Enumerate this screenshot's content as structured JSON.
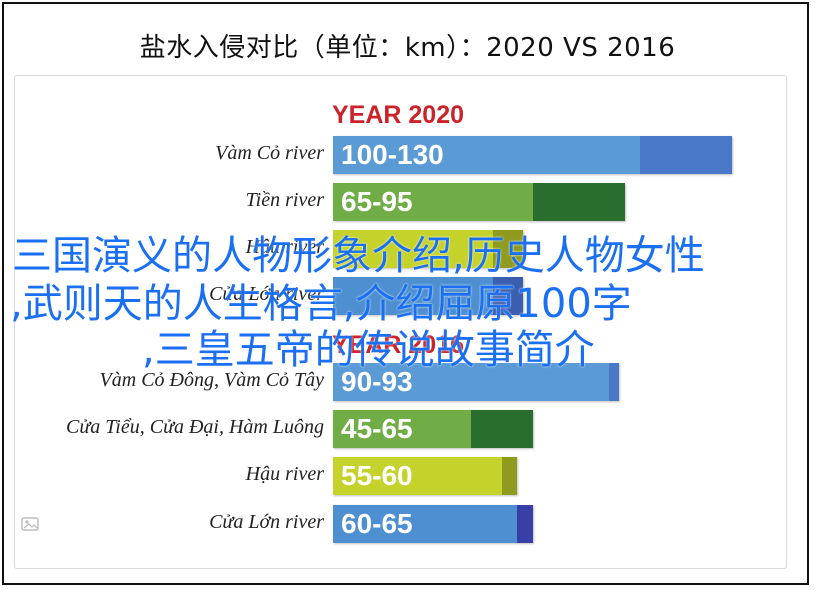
{
  "title": "盐水入侵对比（单位：km）：2020 VS 2016",
  "chart_data": {
    "type": "bar",
    "orientation": "horizontal",
    "groups": [
      {
        "title": "YEAR 2020",
        "rows": [
          {
            "label": "Vàm Cỏ river",
            "range_label": "100-130",
            "min": 100,
            "max": 130,
            "color": "#5b9bd5",
            "ext_color": "#4a78c8"
          },
          {
            "label": "Tiền river",
            "range_label": "65-95",
            "min": 65,
            "max": 95,
            "color": "#70ad47",
            "ext_color": "#2a6e2f"
          },
          {
            "label": "Hậu river",
            "range_label": "",
            "min": null,
            "max": null,
            "color": "#c5d22c",
            "ext_color": "#8f9b1f"
          },
          {
            "label": "Cửa Lớn river",
            "range_label": "",
            "min": null,
            "max": null,
            "color": "#4d8fd0",
            "ext_color": "#3a5fb0"
          }
        ]
      },
      {
        "title": "YEAR 2016",
        "rows": [
          {
            "label": "Vàm Cỏ Đông, Vàm Cỏ Tây",
            "range_label": "90-93",
            "min": 90,
            "max": 93,
            "color": "#5b9bd5",
            "ext_color": "#4a78c8"
          },
          {
            "label": "Cửa Tiểu, Cửa Đại, Hàm Luông",
            "range_label": "45-65",
            "min": 45,
            "max": 65,
            "color": "#70ad47",
            "ext_color": "#2a6e2f"
          },
          {
            "label": "Hậu river",
            "range_label": "55-60",
            "min": 55,
            "max": 60,
            "color": "#c5d22c",
            "ext_color": "#8f9b1f"
          },
          {
            "label": "Cửa Lớn river",
            "range_label": "60-65",
            "min": 60,
            "max": 65,
            "color": "#4d8fd0",
            "ext_color": "#3a3fa8"
          }
        ]
      }
    ]
  },
  "overlay_text": {
    "line1": "三国演义的人物形象介绍,历史人物女性",
    "line2": ",武则天的人生格言,介绍屈原100字",
    "line3": ",三皇五帝的传说故事简介"
  }
}
